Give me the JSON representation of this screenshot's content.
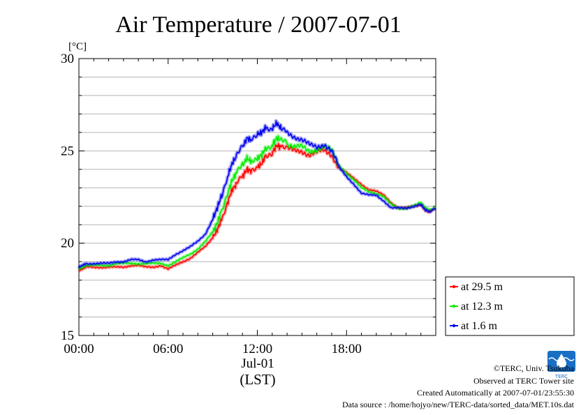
{
  "chart_data": {
    "type": "line",
    "title": "Air Temperature / 2007-07-01",
    "ylabel": "[°C]",
    "xlabel": "(LST)",
    "date_label": "Jul-01",
    "ylim": [
      15,
      30
    ],
    "xlim": [
      0,
      24
    ],
    "y_ticks": [
      {
        "value": 30,
        "label": "30"
      },
      {
        "value": 25,
        "label": "25"
      },
      {
        "value": 20,
        "label": "20"
      },
      {
        "value": 15,
        "label": "15"
      }
    ],
    "x_ticks": [
      {
        "value": 0,
        "label": "00:00"
      },
      {
        "value": 6,
        "label": "06:00"
      },
      {
        "value": 12,
        "label": "12:00"
      },
      {
        "value": 18,
        "label": "18:00"
      }
    ],
    "grid": true,
    "legend_position": "bottom-right-outside",
    "series": [
      {
        "name": "at 29.5 m",
        "color": "#ff0000",
        "x": [
          0,
          0.2,
          0.5,
          1,
          1.5,
          2,
          2.5,
          3,
          3.5,
          4,
          4.5,
          5,
          5.5,
          6,
          6.5,
          7,
          7.5,
          8,
          8.5,
          9,
          9.3,
          9.6,
          10,
          10.3,
          10.6,
          11,
          11.3,
          11.6,
          12,
          12.3,
          12.6,
          13,
          13.3,
          13.6,
          14,
          14.5,
          15,
          15.5,
          16,
          16.5,
          17,
          17.5,
          18,
          18.5,
          19,
          19.5,
          20,
          20.5,
          21,
          21.5,
          22,
          22.5,
          23,
          23.3,
          23.6,
          24
        ],
        "y": [
          18.5,
          18.6,
          18.7,
          18.7,
          18.7,
          18.7,
          18.7,
          18.7,
          18.8,
          18.8,
          18.7,
          18.7,
          18.8,
          18.6,
          18.8,
          19.0,
          19.2,
          19.5,
          19.8,
          20.3,
          20.7,
          21.3,
          22.2,
          22.9,
          23.2,
          23.6,
          24.0,
          23.9,
          24.1,
          24.3,
          24.8,
          24.9,
          25.3,
          25.2,
          25.1,
          25.0,
          25.0,
          24.8,
          24.9,
          25.0,
          24.8,
          24.1,
          23.8,
          23.5,
          23.2,
          22.9,
          22.8,
          22.6,
          22.2,
          21.9,
          21.9,
          22.0,
          22.1,
          21.8,
          21.7,
          21.9
        ]
      },
      {
        "name": "at 12.3 m",
        "color": "#00ee00",
        "x": [
          0,
          0.2,
          0.5,
          1,
          1.5,
          2,
          2.5,
          3,
          3.5,
          4,
          4.5,
          5,
          5.5,
          6,
          6.5,
          7,
          7.5,
          8,
          8.5,
          9,
          9.3,
          9.6,
          10,
          10.3,
          10.6,
          11,
          11.3,
          11.6,
          12,
          12.3,
          12.6,
          13,
          13.3,
          13.6,
          14,
          14.5,
          15,
          15.5,
          16,
          16.5,
          17,
          17.5,
          18,
          18.5,
          19,
          19.5,
          20,
          20.5,
          21,
          21.5,
          22,
          22.5,
          23,
          23.3,
          23.6,
          24
        ],
        "y": [
          18.6,
          18.7,
          18.8,
          18.8,
          18.8,
          18.8,
          18.9,
          18.9,
          18.9,
          18.9,
          18.9,
          18.9,
          18.9,
          18.8,
          19.0,
          19.2,
          19.4,
          19.7,
          20.1,
          20.6,
          21.1,
          21.8,
          22.7,
          23.4,
          23.8,
          24.2,
          24.6,
          24.4,
          24.6,
          24.8,
          25.2,
          25.3,
          25.7,
          25.6,
          25.4,
          25.2,
          25.2,
          25.0,
          25.1,
          25.2,
          25.0,
          24.2,
          23.8,
          23.4,
          23.0,
          22.8,
          22.7,
          22.5,
          22.1,
          21.9,
          21.9,
          22.0,
          22.2,
          21.9,
          21.8,
          21.9
        ]
      },
      {
        "name": "at 1.6 m",
        "color": "#0000ee",
        "x": [
          0,
          0.2,
          0.5,
          1,
          1.5,
          2,
          2.5,
          3,
          3.5,
          4,
          4.5,
          5,
          5.5,
          6,
          6.5,
          7,
          7.5,
          8,
          8.5,
          9,
          9.3,
          9.6,
          10,
          10.3,
          10.6,
          11,
          11.3,
          11.6,
          12,
          12.3,
          12.6,
          13,
          13.3,
          13.6,
          14,
          14.5,
          15,
          15.5,
          16,
          16.5,
          17,
          17.5,
          18,
          18.5,
          19,
          19.5,
          20,
          20.5,
          21,
          21.5,
          22,
          22.5,
          23,
          23.3,
          23.6,
          24
        ],
        "y": [
          18.7,
          18.8,
          18.9,
          18.9,
          18.9,
          18.9,
          19.0,
          19.0,
          19.1,
          19.1,
          19.0,
          19.1,
          19.1,
          19.1,
          19.4,
          19.6,
          19.8,
          20.1,
          20.5,
          21.3,
          21.9,
          22.6,
          23.6,
          24.3,
          24.7,
          25.2,
          25.7,
          25.6,
          25.9,
          26.0,
          26.3,
          26.2,
          26.5,
          26.2,
          26.0,
          25.8,
          25.6,
          25.3,
          25.2,
          25.4,
          25.0,
          24.1,
          23.6,
          23.2,
          22.7,
          22.6,
          22.6,
          22.3,
          21.9,
          21.9,
          21.9,
          22.0,
          22.1,
          21.8,
          21.7,
          21.9
        ]
      }
    ]
  },
  "credits": {
    "copyright": "©TERC, Univ. Tsukuba",
    "observed": "Observed at TERC Tower site",
    "created": "Created Automatically at 2007-07-01/23:55:30",
    "source": "Data source : /home/hojyo/new/TERC-data/sorted_data/MET.10s.dat",
    "logo_text": "TERC",
    "logo_color": "#1a6fc4"
  }
}
